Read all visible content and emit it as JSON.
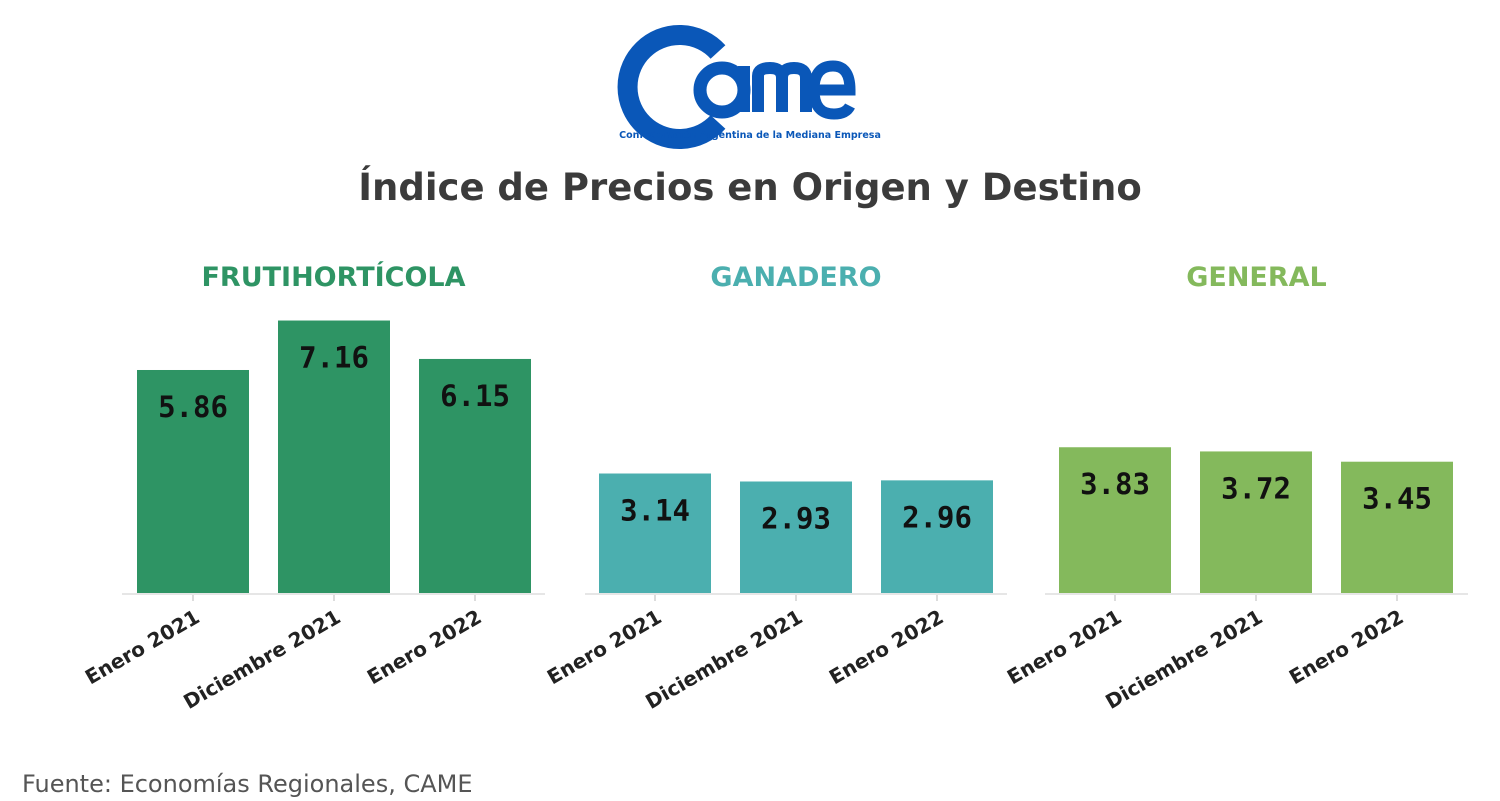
{
  "logo": {
    "wordmark": "came",
    "tagline": "Confederación Argentina de la Mediana Empresa",
    "color": "#0a57b8"
  },
  "title": "Índice de Precios en Origen y Destino",
  "source": "Fuente: Economías Regionales, CAME",
  "chart_data": [
    {
      "type": "bar",
      "title": "FRUTIHORTÍCOLA",
      "color": "#2e9464",
      "categories": [
        "Enero 2021",
        "Diciembre 2021",
        "Enero 2022"
      ],
      "values": [
        5.86,
        7.16,
        6.15
      ],
      "ylim": [
        0,
        7.2
      ],
      "grid": false
    },
    {
      "type": "bar",
      "title": "GANADERO",
      "color": "#4bafaf",
      "categories": [
        "Enero 2021",
        "Diciembre 2021",
        "Enero 2022"
      ],
      "values": [
        3.14,
        2.93,
        2.96
      ],
      "ylim": [
        0,
        7.2
      ],
      "grid": false
    },
    {
      "type": "bar",
      "title": "GENERAL",
      "color": "#84b95c",
      "categories": [
        "Enero 2021",
        "Diciembre 2021",
        "Enero 2022"
      ],
      "values": [
        3.83,
        3.72,
        3.45
      ],
      "ylim": [
        0,
        7.2
      ],
      "grid": false
    }
  ]
}
